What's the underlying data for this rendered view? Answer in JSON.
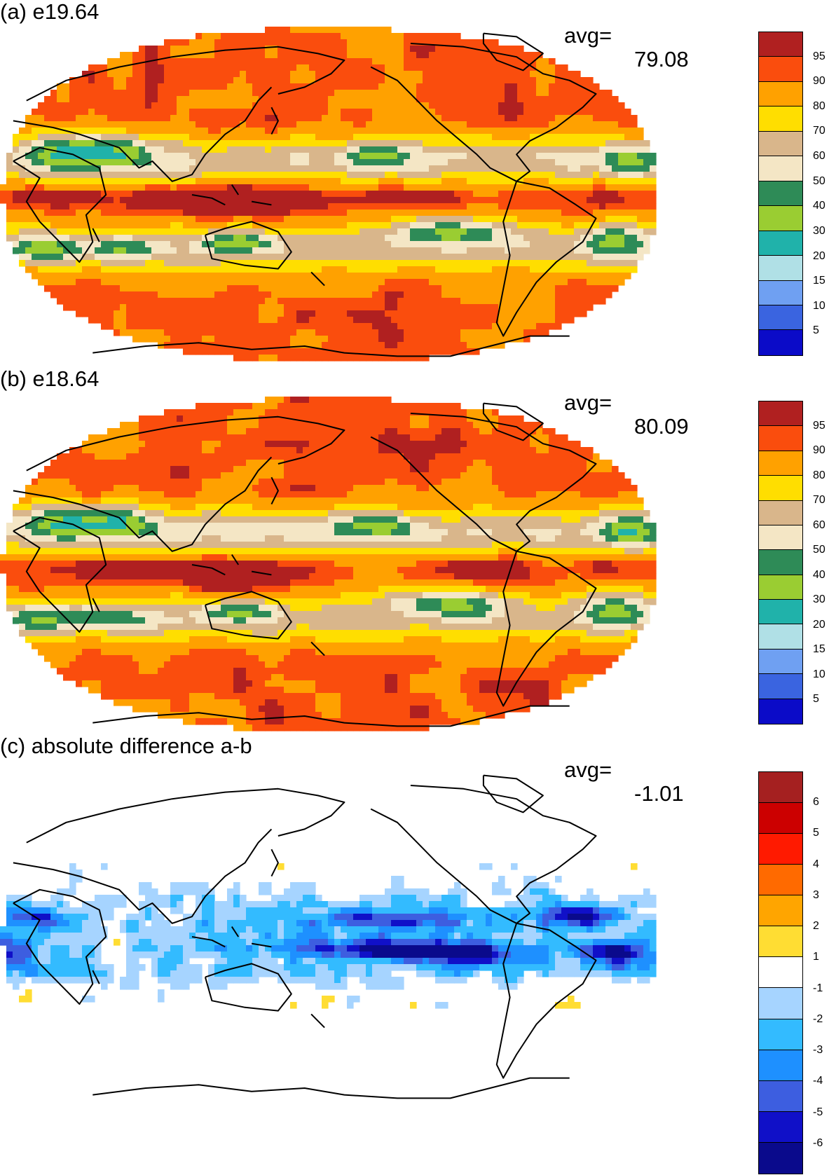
{
  "panels": [
    {
      "id": "a",
      "title": "(a) e19.64",
      "avg_label": "avg=",
      "avg_value": "79.08",
      "colorbar": {
        "labels": [
          "95",
          "90",
          "80",
          "70",
          "60",
          "50",
          "40",
          "30",
          "20",
          "15",
          "10",
          "5"
        ],
        "colors": [
          "#b02020",
          "#fa4d0d",
          "#ffa100",
          "#ffde00",
          "#d9b68b",
          "#f4e6c5",
          "#2e8b57",
          "#9acd32",
          "#20b2aa",
          "#b0e0e6",
          "#6fa0f2",
          "#3a64e0",
          "#0b0bc8"
        ]
      },
      "field_type": "percent"
    },
    {
      "id": "b",
      "title": "(b) e18.64",
      "avg_label": "avg=",
      "avg_value": "80.09",
      "colorbar": {
        "labels": [
          "95",
          "90",
          "80",
          "70",
          "60",
          "50",
          "40",
          "30",
          "20",
          "15",
          "10",
          "5"
        ],
        "colors": [
          "#b02020",
          "#fa4d0d",
          "#ffa100",
          "#ffde00",
          "#d9b68b",
          "#f4e6c5",
          "#2e8b57",
          "#9acd32",
          "#20b2aa",
          "#b0e0e6",
          "#6fa0f2",
          "#3a64e0",
          "#0b0bc8"
        ]
      },
      "field_type": "percent"
    },
    {
      "id": "c",
      "title": "(c) absolute difference a-b",
      "avg_label": "avg=",
      "avg_value": "-1.01",
      "colorbar": {
        "labels": [
          "6",
          "5",
          "4",
          "3",
          "2",
          "1",
          "-1",
          "-2",
          "-3",
          "-4",
          "-5",
          "-6"
        ],
        "colors": [
          "#a52020",
          "#cc0000",
          "#ff1a00",
          "#ff6a00",
          "#ffa500",
          "#ffdd33",
          "#ffffff",
          "#a6d4ff",
          "#33bbff",
          "#1e90ff",
          "#3d5ee0",
          "#1010c8",
          "#0a0a8c"
        ]
      },
      "field_type": "difference"
    }
  ]
}
